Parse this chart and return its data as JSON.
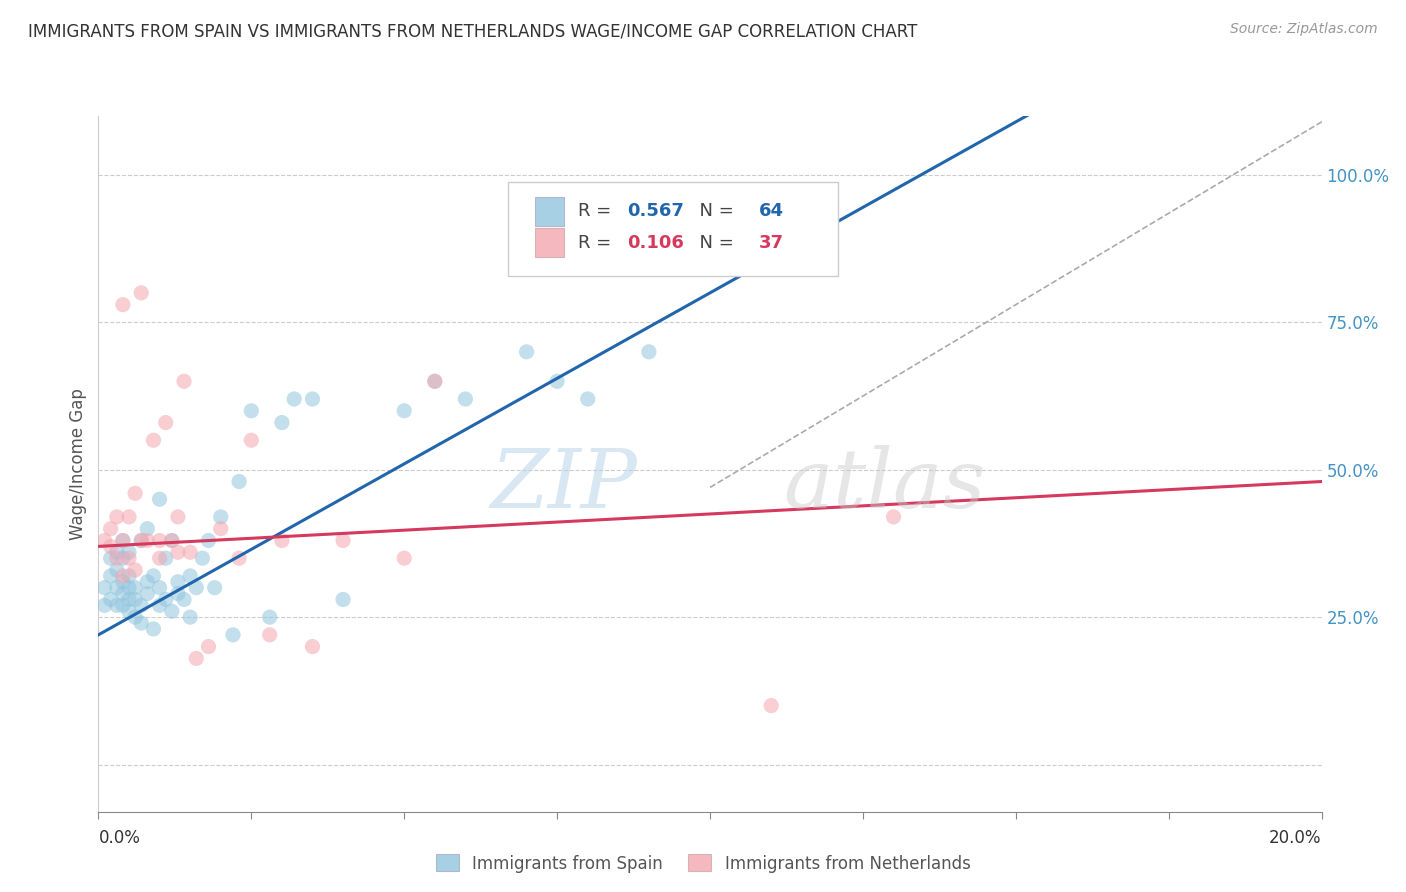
{
  "title": "IMMIGRANTS FROM SPAIN VS IMMIGRANTS FROM NETHERLANDS WAGE/INCOME GAP CORRELATION CHART",
  "source": "Source: ZipAtlas.com",
  "ylabel": "Wage/Income Gap",
  "yticks": [
    0.0,
    0.25,
    0.5,
    0.75,
    1.0
  ],
  "ytick_labels": [
    "",
    "25.0%",
    "50.0%",
    "75.0%",
    "100.0%"
  ],
  "xlim": [
    0.0,
    0.2
  ],
  "ylim": [
    -0.08,
    1.1
  ],
  "blue_color": "#92c5de",
  "pink_color": "#f4a6b0",
  "blue_line_color": "#2166ac",
  "pink_line_color": "#d6395e",
  "dashed_line_color": "#aaaaaa",
  "right_axis_color": "#4393c3",
  "r_blue": 0.567,
  "n_blue": 64,
  "r_pink": 0.106,
  "n_pink": 37,
  "blue_slope": 5.8,
  "blue_intercept": 0.22,
  "pink_slope": 0.55,
  "pink_intercept": 0.37,
  "spain_x": [
    0.001,
    0.001,
    0.002,
    0.002,
    0.002,
    0.003,
    0.003,
    0.003,
    0.003,
    0.004,
    0.004,
    0.004,
    0.004,
    0.004,
    0.005,
    0.005,
    0.005,
    0.005,
    0.005,
    0.006,
    0.006,
    0.006,
    0.007,
    0.007,
    0.007,
    0.008,
    0.008,
    0.008,
    0.009,
    0.009,
    0.01,
    0.01,
    0.01,
    0.011,
    0.011,
    0.012,
    0.012,
    0.013,
    0.013,
    0.014,
    0.015,
    0.015,
    0.016,
    0.017,
    0.018,
    0.019,
    0.02,
    0.022,
    0.023,
    0.025,
    0.028,
    0.03,
    0.032,
    0.035,
    0.04,
    0.05,
    0.055,
    0.06,
    0.07,
    0.075,
    0.08,
    0.09,
    0.1,
    0.11
  ],
  "spain_y": [
    0.27,
    0.3,
    0.28,
    0.32,
    0.35,
    0.27,
    0.3,
    0.33,
    0.36,
    0.27,
    0.29,
    0.31,
    0.35,
    0.38,
    0.26,
    0.28,
    0.3,
    0.32,
    0.36,
    0.25,
    0.28,
    0.3,
    0.24,
    0.27,
    0.38,
    0.29,
    0.31,
    0.4,
    0.23,
    0.32,
    0.27,
    0.3,
    0.45,
    0.28,
    0.35,
    0.26,
    0.38,
    0.29,
    0.31,
    0.28,
    0.25,
    0.32,
    0.3,
    0.35,
    0.38,
    0.3,
    0.42,
    0.22,
    0.48,
    0.6,
    0.25,
    0.58,
    0.62,
    0.62,
    0.28,
    0.6,
    0.65,
    0.62,
    0.7,
    0.65,
    0.62,
    0.7,
    0.85,
    0.87
  ],
  "netherlands_x": [
    0.001,
    0.002,
    0.002,
    0.003,
    0.003,
    0.004,
    0.004,
    0.004,
    0.005,
    0.005,
    0.006,
    0.006,
    0.007,
    0.007,
    0.008,
    0.009,
    0.01,
    0.01,
    0.011,
    0.012,
    0.013,
    0.013,
    0.014,
    0.015,
    0.016,
    0.018,
    0.02,
    0.023,
    0.025,
    0.028,
    0.03,
    0.035,
    0.04,
    0.05,
    0.055,
    0.11,
    0.13
  ],
  "netherlands_y": [
    0.38,
    0.37,
    0.4,
    0.35,
    0.42,
    0.32,
    0.38,
    0.78,
    0.35,
    0.42,
    0.33,
    0.46,
    0.38,
    0.8,
    0.38,
    0.55,
    0.35,
    0.38,
    0.58,
    0.38,
    0.42,
    0.36,
    0.65,
    0.36,
    0.18,
    0.2,
    0.4,
    0.35,
    0.55,
    0.22,
    0.38,
    0.2,
    0.38,
    0.35,
    0.65,
    0.1,
    0.42
  ],
  "watermark_zip": "ZIP",
  "watermark_atlas": "atlas",
  "background_color": "#ffffff",
  "grid_color": "#cccccc"
}
